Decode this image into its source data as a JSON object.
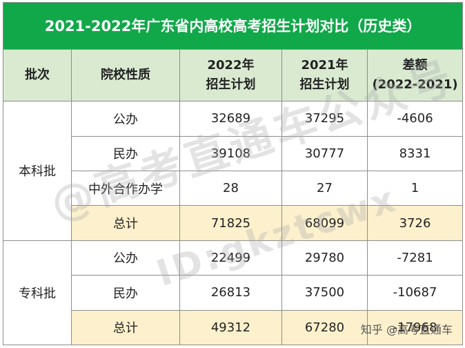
{
  "title": "2021-2022年广东省内高校高考招生计划对比（历史类）",
  "headers": {
    "batch": "批次",
    "type": "院校性质",
    "y2022_line1": "2022年",
    "y2022_line2": "招生计划",
    "y2021_line1": "2021年",
    "y2021_line2": "招生计划",
    "diff_line1": "差额",
    "diff_line2": "(2022-2021)"
  },
  "groups": [
    {
      "batch": "本科批",
      "rows": [
        {
          "type": "公办",
          "y2022": "32689",
          "y2021": "37295",
          "diff": "-4606"
        },
        {
          "type": "民办",
          "y2022": "39108",
          "y2021": "30777",
          "diff": "8331"
        },
        {
          "type": "中外合作办学",
          "y2022": "28",
          "y2021": "27",
          "diff": "1"
        },
        {
          "type": "总计",
          "y2022": "71825",
          "y2021": "68099",
          "diff": "3726"
        }
      ]
    },
    {
      "batch": "专科批",
      "rows": [
        {
          "type": "公办",
          "y2022": "22499",
          "y2021": "29780",
          "diff": "-7281"
        },
        {
          "type": "民办",
          "y2022": "26813",
          "y2021": "37500",
          "diff": "-10687"
        },
        {
          "type": "总计",
          "y2022": "49312",
          "y2021": "67280",
          "diff": "-17968"
        }
      ]
    }
  ],
  "watermark": {
    "line1": "@高考直通车公众号",
    "line2": "ID:gkztcwx"
  },
  "credit": "知乎 @高考直通车",
  "colors": {
    "title_bg": "#11a84a",
    "header_bg": "#d9ead1",
    "total_bg": "#fdf0cc",
    "positive_diff": "#c00000"
  }
}
